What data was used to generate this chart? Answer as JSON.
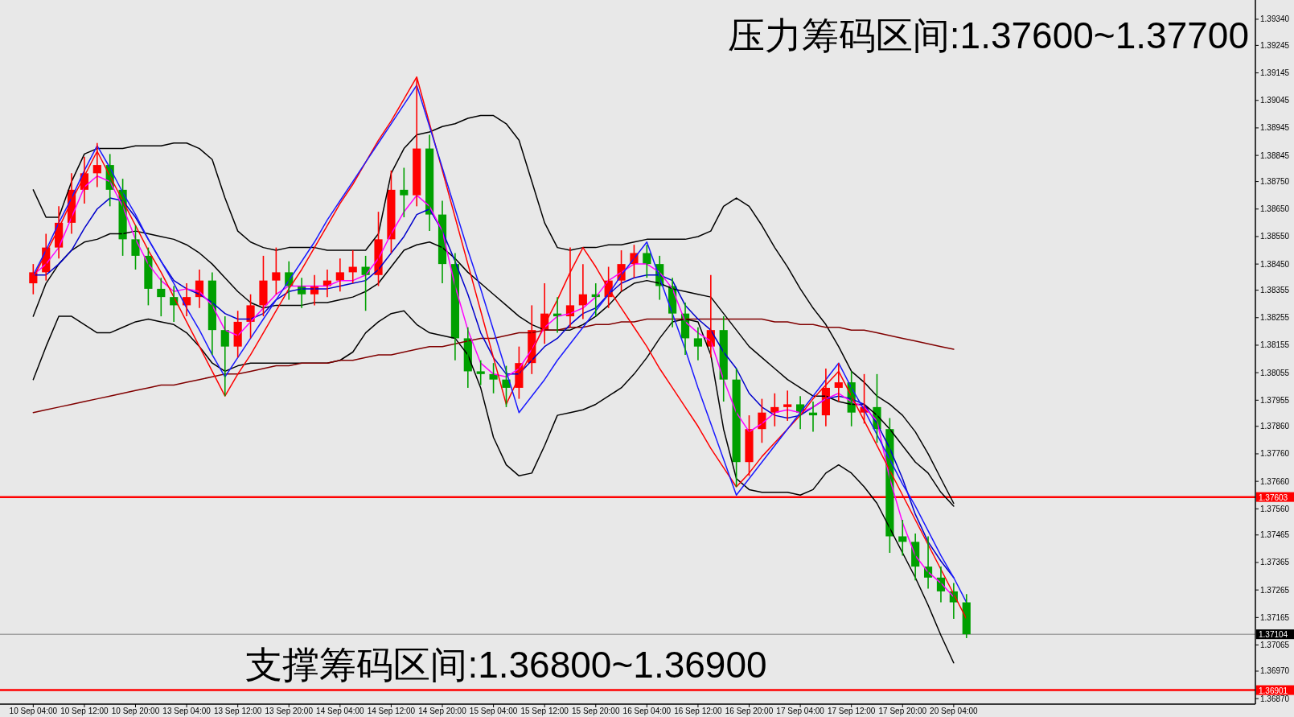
{
  "chart_data": {
    "type": "candlestick",
    "categories": [
      "10 Sep 04:00",
      null,
      null,
      null,
      "10 Sep 12:00",
      null,
      null,
      null,
      "10 Sep 20:00",
      null,
      null,
      null,
      "13 Sep 04:00",
      null,
      null,
      null,
      "13 Sep 12:00",
      null,
      null,
      null,
      "13 Sep 20:00",
      null,
      null,
      null,
      "14 Sep 04:00",
      null,
      null,
      null,
      "14 Sep 12:00",
      null,
      null,
      null,
      "14 Sep 20:00",
      null,
      null,
      null,
      "15 Sep 04:00",
      null,
      null,
      null,
      "15 Sep 12:00",
      null,
      null,
      null,
      "15 Sep 20:00",
      null,
      null,
      null,
      "16 Sep 04:00",
      null,
      null,
      null,
      "16 Sep 12:00",
      null,
      null,
      null,
      "16 Sep 20:00",
      null,
      null,
      null,
      "17 Sep 04:00",
      null,
      null,
      null,
      "17 Sep 12:00",
      null,
      null,
      null,
      "17 Sep 20:00",
      null,
      null,
      null,
      "20 Sep 04:00",
      null
    ],
    "ohlc": [
      [
        1.3838,
        1.3845,
        1.3834,
        1.3842
      ],
      [
        1.3842,
        1.3856,
        1.3839,
        1.3851
      ],
      [
        1.3851,
        1.3866,
        1.3847,
        1.386
      ],
      [
        1.386,
        1.3878,
        1.3856,
        1.3872
      ],
      [
        1.3872,
        1.3884,
        1.3867,
        1.3878
      ],
      [
        1.3878,
        1.3889,
        1.3873,
        1.3881
      ],
      [
        1.3881,
        1.3885,
        1.3866,
        1.3872
      ],
      [
        1.3872,
        1.3876,
        1.3848,
        1.3854
      ],
      [
        1.3854,
        1.3859,
        1.3843,
        1.3848
      ],
      [
        1.3848,
        1.3851,
        1.383,
        1.3836
      ],
      [
        1.3836,
        1.384,
        1.3826,
        1.3833
      ],
      [
        1.3833,
        1.3837,
        1.3824,
        1.383
      ],
      [
        1.383,
        1.3838,
        1.3826,
        1.3833
      ],
      [
        1.3833,
        1.3843,
        1.3829,
        1.3839
      ],
      [
        1.3839,
        1.3842,
        1.3812,
        1.3821
      ],
      [
        1.3821,
        1.3826,
        1.3797,
        1.3815
      ],
      [
        1.3815,
        1.3828,
        1.3811,
        1.3824
      ],
      [
        1.3824,
        1.3834,
        1.3818,
        1.383
      ],
      [
        1.383,
        1.3848,
        1.3826,
        1.3839
      ],
      [
        1.3839,
        1.3851,
        1.3834,
        1.3842
      ],
      [
        1.3842,
        1.3846,
        1.3832,
        1.3837
      ],
      [
        1.3837,
        1.384,
        1.3829,
        1.3834
      ],
      [
        1.3834,
        1.3841,
        1.383,
        1.3837
      ],
      [
        1.3837,
        1.3843,
        1.3833,
        1.3839
      ],
      [
        1.3839,
        1.3847,
        1.3835,
        1.3842
      ],
      [
        1.3842,
        1.385,
        1.3838,
        1.3844
      ],
      [
        1.3844,
        1.3848,
        1.3828,
        1.3841
      ],
      [
        1.3841,
        1.3864,
        1.3837,
        1.3854
      ],
      [
        1.3854,
        1.3879,
        1.3849,
        1.3872
      ],
      [
        1.3872,
        1.388,
        1.3862,
        1.387
      ],
      [
        1.387,
        1.3913,
        1.3866,
        1.3887
      ],
      [
        1.3887,
        1.3892,
        1.3857,
        1.3863
      ],
      [
        1.3863,
        1.3868,
        1.3838,
        1.3845
      ],
      [
        1.3845,
        1.3849,
        1.381,
        1.3818
      ],
      [
        1.3818,
        1.3822,
        1.38,
        1.3806
      ],
      [
        1.3806,
        1.381,
        1.3801,
        1.3805
      ],
      [
        1.3805,
        1.3809,
        1.3798,
        1.3803
      ],
      [
        1.3803,
        1.3808,
        1.3793,
        1.38
      ],
      [
        1.38,
        1.3815,
        1.3796,
        1.3809
      ],
      [
        1.3809,
        1.383,
        1.3805,
        1.3821
      ],
      [
        1.3821,
        1.3838,
        1.3816,
        1.3827
      ],
      [
        1.3827,
        1.3833,
        1.382,
        1.3826
      ],
      [
        1.3826,
        1.3851,
        1.3822,
        1.383
      ],
      [
        1.383,
        1.3845,
        1.3825,
        1.3834
      ],
      [
        1.3834,
        1.3838,
        1.3826,
        1.3833
      ],
      [
        1.3833,
        1.3844,
        1.3829,
        1.3839
      ],
      [
        1.3839,
        1.385,
        1.3835,
        1.3845
      ],
      [
        1.3845,
        1.3852,
        1.384,
        1.3849
      ],
      [
        1.3849,
        1.3852,
        1.384,
        1.3845
      ],
      [
        1.3845,
        1.3848,
        1.3832,
        1.3837
      ],
      [
        1.3837,
        1.384,
        1.3822,
        1.3827
      ],
      [
        1.3827,
        1.3831,
        1.3812,
        1.3818
      ],
      [
        1.3818,
        1.3822,
        1.381,
        1.3815
      ],
      [
        1.3815,
        1.3841,
        1.3811,
        1.3821
      ],
      [
        1.3821,
        1.3826,
        1.3795,
        1.3803
      ],
      [
        1.3803,
        1.3807,
        1.3764,
        1.3773
      ],
      [
        1.3773,
        1.379,
        1.3768,
        1.3785
      ],
      [
        1.3785,
        1.3796,
        1.378,
        1.3791
      ],
      [
        1.3791,
        1.3798,
        1.3786,
        1.3793
      ],
      [
        1.3793,
        1.3799,
        1.3788,
        1.3794
      ],
      [
        1.3794,
        1.3797,
        1.3785,
        1.3791
      ],
      [
        1.3791,
        1.3795,
        1.3784,
        1.379
      ],
      [
        1.379,
        1.3807,
        1.3786,
        1.38
      ],
      [
        1.38,
        1.3809,
        1.3795,
        1.3802
      ],
      [
        1.3802,
        1.3806,
        1.3786,
        1.3791
      ],
      [
        1.3791,
        1.3805,
        1.3787,
        1.3793
      ],
      [
        1.3793,
        1.3805,
        1.378,
        1.3785
      ],
      [
        1.3785,
        1.3789,
        1.374,
        1.3746
      ],
      [
        1.3746,
        1.3752,
        1.3739,
        1.3744
      ],
      [
        1.3744,
        1.3747,
        1.373,
        1.3735
      ],
      [
        1.3735,
        1.3746,
        1.3727,
        1.3731
      ],
      [
        1.3731,
        1.3735,
        1.3722,
        1.3726
      ],
      [
        1.3726,
        1.3729,
        1.3716,
        1.3722
      ],
      [
        1.3722,
        1.3725,
        1.3709,
        1.37104
      ]
    ],
    "colors": [
      "#ff0000",
      "#ff0000",
      "#ff0000",
      "#ff0000",
      "#ff0000",
      "#ff0000",
      "#00a000",
      "#00a000",
      "#00a000",
      "#00a000",
      "#00a000",
      "#00a000",
      "#ff0000",
      "#ff0000",
      "#00a000",
      "#00a000",
      "#ff0000",
      "#ff0000",
      "#ff0000",
      "#ff0000",
      "#00a000",
      "#00a000",
      "#ff0000",
      "#ff0000",
      "#ff0000",
      "#ff0000",
      "#00a000",
      "#ff0000",
      "#ff0000",
      "#00a000",
      "#ff0000",
      "#00a000",
      "#00a000",
      "#00a000",
      "#00a000",
      "#00a000",
      "#00a000",
      "#00a000",
      "#ff0000",
      "#ff0000",
      "#ff0000",
      "#00a000",
      "#ff0000",
      "#ff0000",
      "#00a000",
      "#ff0000",
      "#ff0000",
      "#ff0000",
      "#00a000",
      "#00a000",
      "#00a000",
      "#00a000",
      "#00a000",
      "#ff0000",
      "#00a000",
      "#00a000",
      "#ff0000",
      "#ff0000",
      "#ff0000",
      "#ff0000",
      "#00a000",
      "#00a000",
      "#ff0000",
      "#ff0000",
      "#00a000",
      "#ff0000",
      "#00a000",
      "#00a000",
      "#00a000",
      "#00a000",
      "#00a000",
      "#00a000",
      "#00a000",
      "#00a000"
    ],
    "series": [
      {
        "type": "line",
        "color": "#000000",
        "values": [
          1.3872,
          1.3862,
          1.3862,
          1.3875,
          1.3885,
          1.3887,
          1.3887,
          1.3887,
          1.3888,
          1.3888,
          1.3888,
          1.3889,
          1.3889,
          1.3887,
          1.3883,
          1.3869,
          1.3857,
          1.3853,
          1.3851,
          1.385,
          1.3851,
          1.3851,
          1.3851,
          1.385,
          1.385,
          1.385,
          1.385,
          1.3856,
          1.3878,
          1.3887,
          1.3892,
          1.3893,
          1.3895,
          1.3896,
          1.3898,
          1.3899,
          1.3899,
          1.3896,
          1.389,
          1.3875,
          1.386,
          1.3851,
          1.385,
          1.3851,
          1.3851,
          1.3852,
          1.3852,
          1.3853,
          1.3854,
          1.3854,
          1.3854,
          1.3854,
          1.3855,
          1.3857,
          1.3866,
          1.3869,
          1.3866,
          1.3859,
          1.3851,
          1.3844,
          1.3836,
          1.3829,
          1.3823,
          1.3815,
          1.3806,
          1.3802,
          1.3797,
          1.3794,
          1.379,
          1.3784,
          1.3776,
          1.3767,
          1.3758,
          null
        ]
      },
      {
        "type": "line",
        "color": "#000000",
        "values": [
          1.3826,
          1.3838,
          1.3845,
          1.385,
          1.3853,
          1.3854,
          1.3856,
          1.3856,
          1.3857,
          1.3856,
          1.3855,
          1.3854,
          1.3852,
          1.3849,
          1.3845,
          1.384,
          1.3835,
          1.3831,
          1.3829,
          1.383,
          1.383,
          1.383,
          1.3831,
          1.3831,
          1.3832,
          1.3833,
          1.3835,
          1.3838,
          1.3844,
          1.385,
          1.3852,
          1.3853,
          1.3851,
          1.3847,
          1.3842,
          1.3838,
          1.3834,
          1.383,
          1.3826,
          1.3823,
          1.3821,
          1.3821,
          1.3821,
          1.3823,
          1.3826,
          1.383,
          1.3835,
          1.3838,
          1.3839,
          1.3838,
          1.3836,
          1.3835,
          1.3834,
          1.3833,
          1.3827,
          1.3821,
          1.3815,
          1.3811,
          1.3807,
          1.3803,
          1.38,
          1.3797,
          1.3797,
          1.3795,
          1.3794,
          1.3794,
          1.379,
          1.3785,
          1.3779,
          1.3773,
          1.3769,
          1.3762,
          1.3757,
          null
        ]
      },
      {
        "type": "line",
        "color": "#000000",
        "values": [
          1.3803,
          1.3815,
          1.3826,
          1.3826,
          1.3823,
          1.382,
          1.382,
          1.3822,
          1.3824,
          1.3825,
          1.3824,
          1.3823,
          1.382,
          1.3815,
          1.3809,
          1.3806,
          1.3808,
          1.3809,
          1.3809,
          1.3809,
          1.3809,
          1.3809,
          1.3809,
          1.3809,
          1.381,
          1.3813,
          1.382,
          1.3824,
          1.3827,
          1.3828,
          1.3823,
          1.382,
          1.3819,
          1.3818,
          1.3812,
          1.38,
          1.3782,
          1.3772,
          1.3768,
          1.3769,
          1.3779,
          1.379,
          1.3791,
          1.3792,
          1.3794,
          1.3797,
          1.38,
          1.3805,
          1.3811,
          1.3818,
          1.3824,
          1.3825,
          1.3824,
          1.3812,
          1.3785,
          1.3767,
          1.3763,
          1.3762,
          1.3762,
          1.3762,
          1.3761,
          1.3763,
          1.3769,
          1.3772,
          1.3769,
          1.3764,
          1.3758,
          1.3749,
          1.374,
          1.3731,
          1.3721,
          1.371,
          1.37,
          null
        ]
      },
      {
        "type": "line",
        "color": "#800000",
        "values": [
          1.3791,
          1.3792,
          1.3793,
          1.3794,
          1.3795,
          1.3796,
          1.3797,
          1.3798,
          1.3799,
          1.38,
          1.3801,
          1.3801,
          1.3802,
          1.3803,
          1.3804,
          1.3805,
          1.3805,
          1.3806,
          1.3807,
          1.3808,
          1.3808,
          1.3809,
          1.3809,
          1.3809,
          1.381,
          1.381,
          1.3811,
          1.3812,
          1.3812,
          1.3813,
          1.3814,
          1.3815,
          1.3815,
          1.3816,
          1.3817,
          1.3818,
          1.3818,
          1.3819,
          1.382,
          1.382,
          1.3821,
          1.3821,
          1.3822,
          1.3822,
          1.3823,
          1.3823,
          1.3824,
          1.3824,
          1.3825,
          1.3825,
          1.3825,
          1.3825,
          1.3825,
          1.3825,
          1.3825,
          1.3825,
          1.3825,
          1.3825,
          1.3824,
          1.3824,
          1.3823,
          1.3823,
          1.3822,
          1.3822,
          1.3821,
          1.3821,
          1.382,
          1.3819,
          1.3818,
          1.3817,
          1.3816,
          1.3815,
          1.3814,
          null
        ]
      },
      {
        "type": "line",
        "color": "#0000cc",
        "values": [
          1.3841,
          1.3841,
          1.3845,
          1.385,
          1.3858,
          1.3865,
          1.3869,
          1.3868,
          1.3862,
          1.3854,
          1.3846,
          1.3839,
          1.3836,
          1.3834,
          1.3831,
          1.3827,
          1.3825,
          1.3825,
          1.3827,
          1.3832,
          1.3835,
          1.3836,
          1.3836,
          1.3836,
          1.3837,
          1.3838,
          1.3839,
          1.3843,
          1.3849,
          1.3855,
          1.3863,
          1.3865,
          1.3857,
          1.3846,
          1.3834,
          1.382,
          1.3811,
          1.3805,
          1.3805,
          1.381,
          1.3815,
          1.3818,
          1.3823,
          1.3827,
          1.3829,
          1.3834,
          1.3838,
          1.384,
          1.3841,
          1.3841,
          1.3839,
          1.383,
          1.3825,
          1.3821,
          1.3813,
          1.3807,
          1.3798,
          1.3793,
          1.379,
          1.3789,
          1.379,
          1.3793,
          1.3796,
          1.3797,
          1.3796,
          1.3794,
          1.3787,
          1.3778,
          1.3767,
          1.3754,
          1.3744,
          1.3737,
          1.3731,
          null
        ]
      },
      {
        "type": "line",
        "color": "#ff00ff",
        "values": [
          1.3841,
          1.3845,
          1.3851,
          1.3862,
          1.3873,
          1.3877,
          1.3875,
          1.3866,
          1.3854,
          1.3845,
          1.3839,
          1.3835,
          1.3836,
          1.3835,
          1.383,
          1.3821,
          1.3819,
          1.3824,
          1.3829,
          1.3834,
          1.3837,
          1.3837,
          1.3837,
          1.3837,
          1.3839,
          1.3839,
          1.3841,
          1.3847,
          1.3856,
          1.3864,
          1.387,
          1.3866,
          1.3857,
          1.3837,
          1.3821,
          1.3809,
          1.3805,
          1.3804,
          1.3807,
          1.3814,
          1.3822,
          1.3826,
          1.3827,
          1.3829,
          1.3833,
          1.3839,
          1.3842,
          1.3845,
          1.3845,
          1.3842,
          1.3836,
          1.3824,
          1.382,
          1.3817,
          1.3803,
          1.3791,
          1.3784,
          1.3787,
          1.3791,
          1.3792,
          1.3791,
          1.3793,
          1.3796,
          1.3798,
          1.3795,
          1.3793,
          1.3788,
          1.3767,
          1.3751,
          1.3739,
          1.3733,
          1.3729,
          1.3724,
          null
        ]
      },
      {
        "type": "line",
        "color": "#ff0000",
        "values": [
          1.384,
          1.3849,
          1.3858,
          1.3868,
          1.3877,
          1.3886,
          1.3877,
          1.3868,
          1.3859,
          1.385,
          1.3842,
          1.3833,
          1.3824,
          1.3815,
          1.3806,
          1.3797,
          1.3805,
          1.3812,
          1.382,
          1.3828,
          1.3836,
          1.3843,
          1.3851,
          1.3859,
          1.3867,
          1.3874,
          1.3882,
          1.389,
          1.3897,
          1.3905,
          1.3913,
          1.3896,
          1.3879,
          1.3862,
          1.3845,
          1.3828,
          1.3811,
          1.3794,
          1.3804,
          1.3813,
          1.3823,
          1.3832,
          1.3842,
          1.3851,
          1.3844,
          1.3836,
          1.3829,
          1.3822,
          1.3815,
          1.3807,
          1.38,
          1.3793,
          1.3786,
          1.3778,
          1.3771,
          1.3764,
          1.3769,
          1.3775,
          1.378,
          1.3785,
          1.379,
          1.3796,
          1.3801,
          1.3806,
          1.3797,
          1.3788,
          1.3779,
          1.377,
          1.3761,
          1.3752,
          1.3743,
          1.3734,
          1.3725,
          1.3716
        ]
      },
      {
        "type": "line",
        "color": "#1a1aff",
        "values": [
          1.3841,
          1.385,
          1.386,
          1.3869,
          1.3879,
          1.3888,
          1.388,
          1.3871,
          1.3863,
          1.3854,
          1.3846,
          1.3838,
          1.3829,
          1.3821,
          1.3812,
          1.3804,
          1.3811,
          1.3818,
          1.3825,
          1.3832,
          1.3839,
          1.3846,
          1.3853,
          1.3861,
          1.3868,
          1.3875,
          1.3882,
          1.3889,
          1.3896,
          1.3903,
          1.391,
          1.3895,
          1.388,
          1.3865,
          1.385,
          1.3836,
          1.3821,
          1.3806,
          1.3791,
          1.3797,
          1.3803,
          1.381,
          1.3816,
          1.3822,
          1.3828,
          1.3834,
          1.3841,
          1.3847,
          1.3853,
          1.384,
          1.3827,
          1.3814,
          1.38,
          1.3787,
          1.3774,
          1.3761,
          1.3767,
          1.3773,
          1.3779,
          1.3785,
          1.3791,
          1.3797,
          1.3803,
          1.3809,
          1.38,
          1.3792,
          1.3783,
          1.3774,
          1.3765,
          1.3757,
          1.3748,
          1.3739,
          1.3731,
          1.3722
        ]
      }
    ],
    "ylim": [
      1.3685,
      1.3941
    ],
    "yticks": [
      {
        "value": 1.3934,
        "label": "1.39340"
      },
      {
        "value": 1.39245,
        "label": "1.39245"
      },
      {
        "value": 1.39145,
        "label": "1.39145"
      },
      {
        "value": 1.39045,
        "label": "1.39045"
      },
      {
        "value": 1.38945,
        "label": "1.38945"
      },
      {
        "value": 1.38845,
        "label": "1.38845"
      },
      {
        "value": 1.3875,
        "label": "1.38750"
      },
      {
        "value": 1.3865,
        "label": "1.38650"
      },
      {
        "value": 1.3855,
        "label": "1.38550"
      },
      {
        "value": 1.3845,
        "label": "1.38450"
      },
      {
        "value": 1.38355,
        "label": "1.38355"
      },
      {
        "value": 1.38255,
        "label": "1.38255"
      },
      {
        "value": 1.38155,
        "label": "1.38155"
      },
      {
        "value": 1.38055,
        "label": "1.38055"
      },
      {
        "value": 1.37955,
        "label": "1.37955"
      },
      {
        "value": 1.3786,
        "label": "1.37860"
      },
      {
        "value": 1.3776,
        "label": "1.37760"
      },
      {
        "value": 1.3766,
        "label": "1.37660"
      },
      {
        "value": 1.3756,
        "label": "1.37560"
      },
      {
        "value": 1.37465,
        "label": "1.37465"
      },
      {
        "value": 1.37365,
        "label": "1.37365"
      },
      {
        "value": 1.37265,
        "label": "1.37265"
      },
      {
        "value": 1.37165,
        "label": "1.37165"
      },
      {
        "value": 1.37065,
        "label": "1.37065"
      },
      {
        "value": 1.3697,
        "label": "1.36970"
      },
      {
        "value": 1.3687,
        "label": "1.36870"
      }
    ],
    "ref_lines": [
      {
        "axis": "y",
        "value": 1.37603,
        "label": "1.37603",
        "color": "#ff0000"
      },
      {
        "axis": "y",
        "value": 1.37104,
        "label": "1.37104",
        "color": "#808080"
      },
      {
        "axis": "y",
        "value": 1.36901,
        "label": "1.36901",
        "color": "#ff0000"
      }
    ],
    "annotations": [
      "压力筹码区间:1.37600~1.37700",
      "支撑筹码区间:1.36800~1.36900"
    ]
  }
}
